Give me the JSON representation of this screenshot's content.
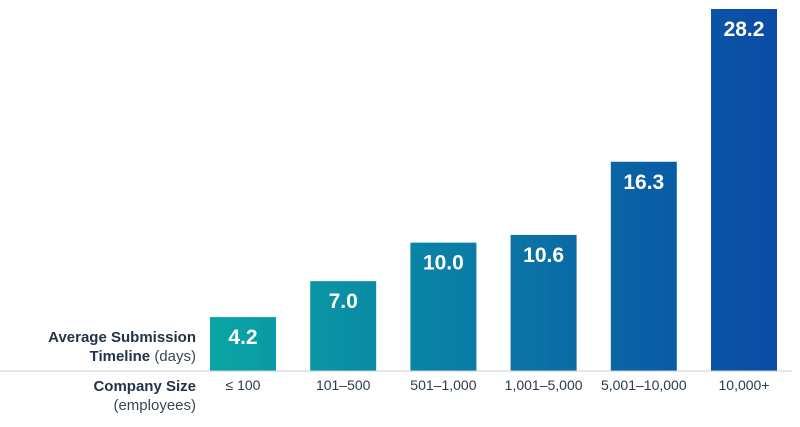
{
  "chart_data": {
    "type": "bar",
    "categories": [
      "≤ 100",
      "101–500",
      "501–1,000",
      "1,001–5,000",
      "5,001–10,000",
      "10,000+"
    ],
    "values": [
      4.2,
      7.0,
      10.0,
      10.6,
      16.3,
      28.2
    ],
    "value_labels": [
      "4.2",
      "7.0",
      "10.0",
      "10.6",
      "16.3",
      "28.2"
    ],
    "ylabel_bold_line1": "Average Submission",
    "ylabel_bold_line2": "Timeline",
    "ylabel_unit": "(days)",
    "xlabel_bold": "Company Size",
    "xlabel_unit": "(employees)",
    "ylim": [
      0,
      28.2
    ],
    "grid": false,
    "legend": "none",
    "colors": {
      "bar_start": "#0aa5a5",
      "bar_end": "#0a4aa6",
      "value_label": "#ffffff",
      "baseline": "#c8ccd2",
      "tick_label": "#2b3a4d"
    }
  }
}
